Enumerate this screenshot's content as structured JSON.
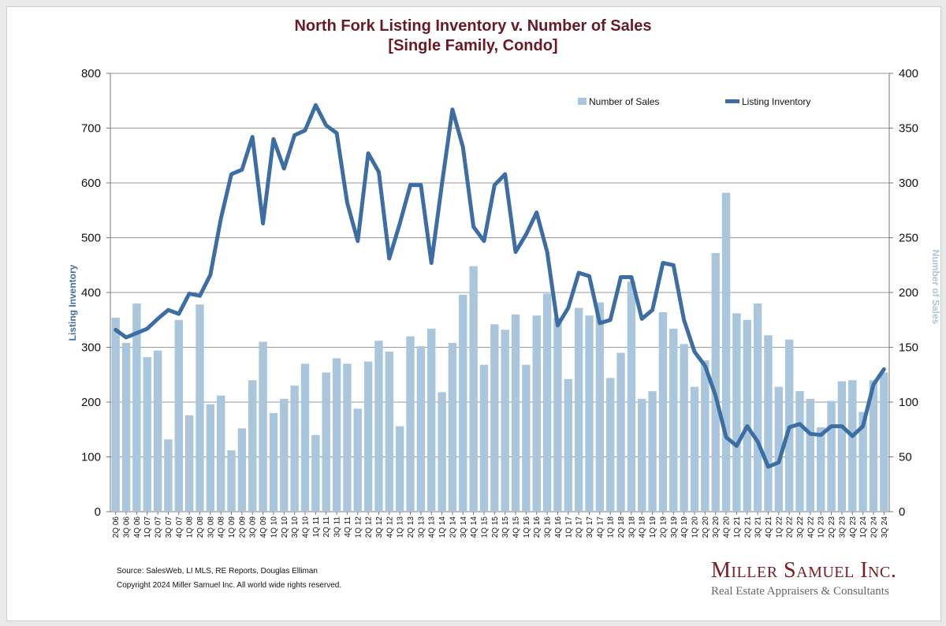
{
  "chart_data": {
    "type": "bar+line",
    "title": "North Fork Listing Inventory v. Number of Sales",
    "subtitle": "[Single Family, Condo]",
    "y_left_label": "Listing Inventory",
    "y_right_label": "Number of Sales",
    "y_left_lim": [
      0,
      800
    ],
    "y_right_lim": [
      0,
      400
    ],
    "y_left_ticks": [
      "0",
      "100",
      "200",
      "300",
      "400",
      "500",
      "600",
      "700",
      "800"
    ],
    "y_right_ticks": [
      "0",
      "50",
      "100",
      "150",
      "200",
      "250",
      "300",
      "350",
      "400"
    ],
    "grid": true,
    "legend_position": "top-right",
    "categories": [
      "2Q 06",
      "3Q 06",
      "4Q 06",
      "1Q 07",
      "2Q 07",
      "3Q 07",
      "4Q 07",
      "1Q 08",
      "2Q 08",
      "3Q 08",
      "4Q 08",
      "1Q 09",
      "2Q 09",
      "3Q 09",
      "4Q 09",
      "1Q 10",
      "2Q 10",
      "3Q 10",
      "4Q 10",
      "1Q 11",
      "2Q 11",
      "3Q 11",
      "4Q 11",
      "1Q 12",
      "2Q 12",
      "3Q 12",
      "4Q 12",
      "1Q 13",
      "2Q 13",
      "3Q 13",
      "4Q 13",
      "1Q 14",
      "2Q 14",
      "3Q 14",
      "4Q 14",
      "1Q 15",
      "2Q 15",
      "3Q 15",
      "4Q 15",
      "1Q 16",
      "2Q 16",
      "3Q 16",
      "4Q 16",
      "1Q 17",
      "2Q 17",
      "3Q 17",
      "4Q 17",
      "1Q 18",
      "2Q 18",
      "3Q 18",
      "4Q 18",
      "1Q 19",
      "2Q 19",
      "3Q 19",
      "4Q 19",
      "1Q 20",
      "2Q 20",
      "3Q 20",
      "4Q 20",
      "1Q 21",
      "2Q 21",
      "3Q 21",
      "4Q 21",
      "1Q 22",
      "2Q 22",
      "3Q 22",
      "4Q 22",
      "1Q 23",
      "2Q 23",
      "3Q 23",
      "4Q 23",
      "1Q 24",
      "2Q 24",
      "3Q 24"
    ],
    "series": [
      {
        "name": "Number of Sales",
        "type": "bar",
        "axis": "right",
        "color": "#a9c6dc",
        "values": [
          177,
          154,
          190,
          141,
          147,
          66,
          175,
          88,
          189,
          98,
          106,
          56,
          76,
          120,
          155,
          90,
          103,
          115,
          135,
          70,
          127,
          140,
          135,
          94,
          137,
          156,
          146,
          78,
          160,
          151,
          167,
          109,
          154,
          198,
          224,
          134,
          171,
          166,
          180,
          134,
          179,
          199,
          177,
          121,
          186,
          179,
          191,
          122,
          145,
          210,
          103,
          110,
          182,
          167,
          153,
          114,
          138,
          236,
          291,
          181,
          175,
          190,
          161,
          114,
          157,
          110,
          103,
          77,
          101,
          119,
          120,
          91,
          120,
          127
        ]
      },
      {
        "name": "Listing Inventory",
        "type": "line",
        "axis": "left",
        "color": "#3d6ea3",
        "values": [
          332,
          318,
          326,
          334,
          352,
          368,
          361,
          398,
          394,
          432,
          535,
          616,
          624,
          684,
          526,
          680,
          626,
          687,
          696,
          742,
          705,
          691,
          564,
          494,
          654,
          620,
          462,
          526,
          596,
          596,
          454,
          598,
          734,
          665,
          520,
          494,
          596,
          616,
          474,
          506,
          546,
          474,
          340,
          372,
          436,
          430,
          344,
          350,
          428,
          428,
          352,
          368,
          454,
          450,
          350,
          292,
          266,
          212,
          136,
          120,
          156,
          128,
          82,
          90,
          154,
          160,
          142,
          140,
          156,
          156,
          138,
          156,
          232,
          260
        ]
      }
    ]
  },
  "source_line1": "Source: SalesWeb, LI MLS, RE Reports, Douglas Elliman",
  "source_line2": "Copyright 2024 Miller Samuel Inc.  All world wide rights reserved.",
  "logo_name": "Miller Samuel Inc.",
  "logo_tagline": "Real Estate Appraisers & Consultants"
}
